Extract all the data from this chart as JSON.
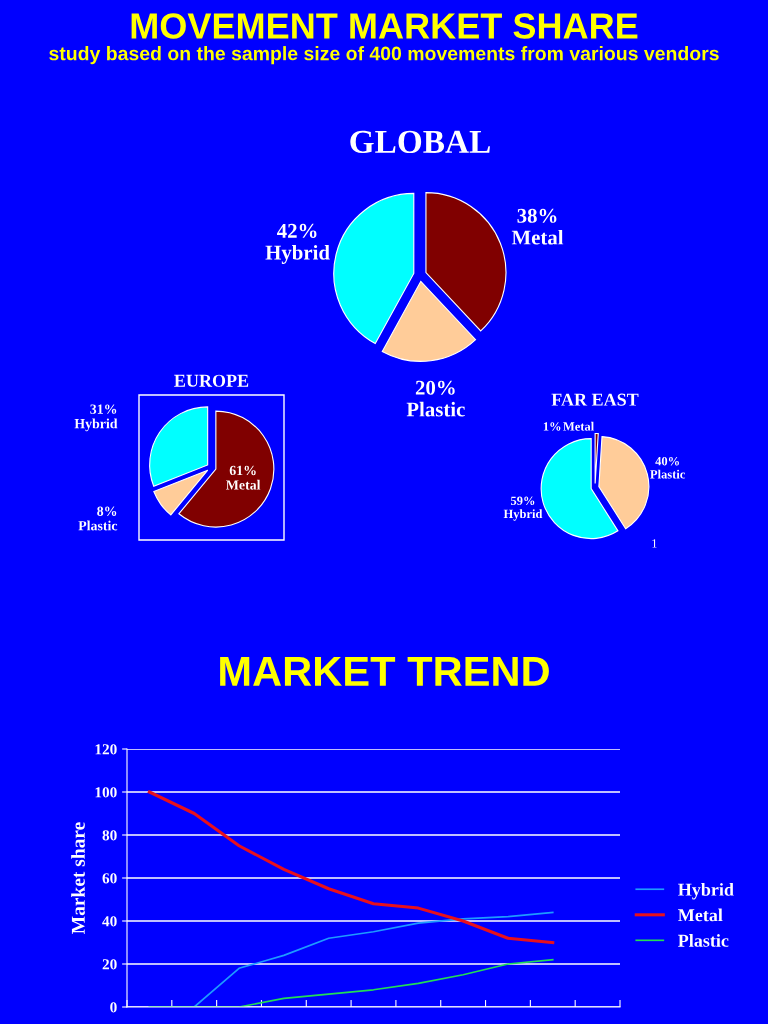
{
  "chart_data": [
    {
      "type": "pie",
      "title": "GLOBAL",
      "annotations": [
        "MOVEMENT MARKET SHARE",
        "study based on the sample size of 400 movements from various vendors"
      ],
      "categories": [
        "Hybrid",
        "Plastic",
        "Metal"
      ],
      "values": [
        42,
        20,
        38
      ],
      "value_labels": [
        "42%",
        "20%",
        "38%"
      ],
      "colors": [
        "#00ffff",
        "#ffcc99",
        "#800000"
      ]
    },
    {
      "type": "pie",
      "title": "EUROPE",
      "categories": [
        "Hybrid",
        "Plastic",
        "Metal"
      ],
      "values": [
        31,
        8,
        61
      ],
      "value_labels": [
        "31%",
        "8%",
        "61%"
      ],
      "colors": [
        "#00ffff",
        "#ffcc99",
        "#800000"
      ]
    },
    {
      "type": "pie",
      "title": "FAR EAST",
      "annotations": [
        "1"
      ],
      "categories": [
        "Hybrid",
        "Plastic",
        "Metal"
      ],
      "values": [
        59,
        40,
        1
      ],
      "value_labels": [
        "59%",
        "40%",
        "1%"
      ],
      "colors": [
        "#00ffff",
        "#ffcc99",
        "#800000"
      ]
    },
    {
      "type": "line",
      "title": "MARKET TREND",
      "ylabel": "Market share",
      "categories": [
        null,
        null,
        null,
        null,
        null,
        null,
        null,
        null,
        null,
        null,
        null
      ],
      "series": [
        {
          "name": "Hybrid",
          "color": "#1e9bff",
          "values": [
            0,
            0,
            18,
            24,
            32,
            35,
            39,
            41,
            42,
            44,
            null
          ]
        },
        {
          "name": "Metal",
          "color": "#e8101c",
          "values": [
            100,
            90,
            75,
            64,
            55,
            48,
            46,
            40,
            32,
            30,
            null
          ]
        },
        {
          "name": "Plastic",
          "color": "#22dd55",
          "values": [
            0,
            0,
            0,
            4,
            6,
            8,
            11,
            15,
            20,
            22,
            null
          ]
        }
      ],
      "ylim": [
        0,
        120
      ],
      "yticks": [
        0,
        20,
        40,
        60,
        80,
        100,
        120
      ],
      "grid": "y",
      "legend": "right",
      "tick_labels": "y"
    }
  ]
}
